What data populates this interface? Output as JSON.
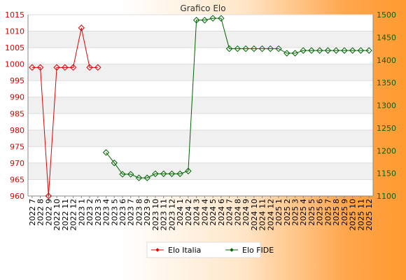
{
  "chart_data": {
    "type": "line",
    "title": "Grafico Elo",
    "categories": [
      "2022 7",
      "2022 8",
      "2022 9",
      "2022 10",
      "2022 11",
      "2022 12",
      "2023 1",
      "2023 2",
      "2023 3",
      "2023 4",
      "2023 5",
      "2023 6",
      "2023 7",
      "2023 8",
      "2023 9",
      "2023 10",
      "2023 11",
      "2023 12",
      "2024 1",
      "2024 2",
      "2024 3",
      "2024 4",
      "2024 5",
      "2024 6",
      "2024 7",
      "2024 8",
      "2024 9",
      "2024 10",
      "2024 11",
      "2024 12",
      "2025 1",
      "2025 2",
      "2025 3",
      "2025 4",
      "2025 5",
      "2025 6",
      "2025 7",
      "2025 8",
      "2025 9",
      "2025 10",
      "2025 11",
      "2025 12"
    ],
    "y_left": {
      "min": 960,
      "max": 1015,
      "ticks": [
        960,
        965,
        970,
        975,
        980,
        985,
        990,
        995,
        1000,
        1005,
        1010,
        1015
      ]
    },
    "y_right": {
      "min": 1100,
      "max": 1500,
      "ticks": [
        1100,
        1150,
        1200,
        1250,
        1300,
        1350,
        1400,
        1450,
        1500
      ]
    },
    "series": [
      {
        "name": "Elo Italia",
        "axis": "left",
        "color": "#e00000",
        "values": [
          999,
          999,
          960,
          999,
          999,
          999,
          1011,
          999,
          999,
          null,
          null,
          null,
          null,
          null,
          null,
          null,
          null,
          null,
          null,
          null,
          null,
          null,
          null,
          null,
          null,
          null,
          null,
          null,
          null,
          null,
          null,
          null,
          null,
          null,
          null,
          null,
          null,
          null,
          null,
          null,
          null,
          null
        ]
      },
      {
        "name": "Elo FIDE",
        "axis": "right",
        "color": "#006400",
        "values": [
          null,
          null,
          null,
          null,
          null,
          null,
          null,
          null,
          null,
          1196,
          1173,
          1148,
          1148,
          1140,
          1140,
          1149,
          1149,
          1149,
          1149,
          1155,
          1488,
          1488,
          1492,
          1492,
          1425,
          1425,
          1425,
          1425,
          1425,
          1425,
          1425,
          1415,
          1415,
          1421,
          1421,
          1421,
          1421,
          1421,
          1421,
          1421,
          1421,
          1421
        ]
      }
    ],
    "grid": true,
    "legend_position": "bottom"
  }
}
